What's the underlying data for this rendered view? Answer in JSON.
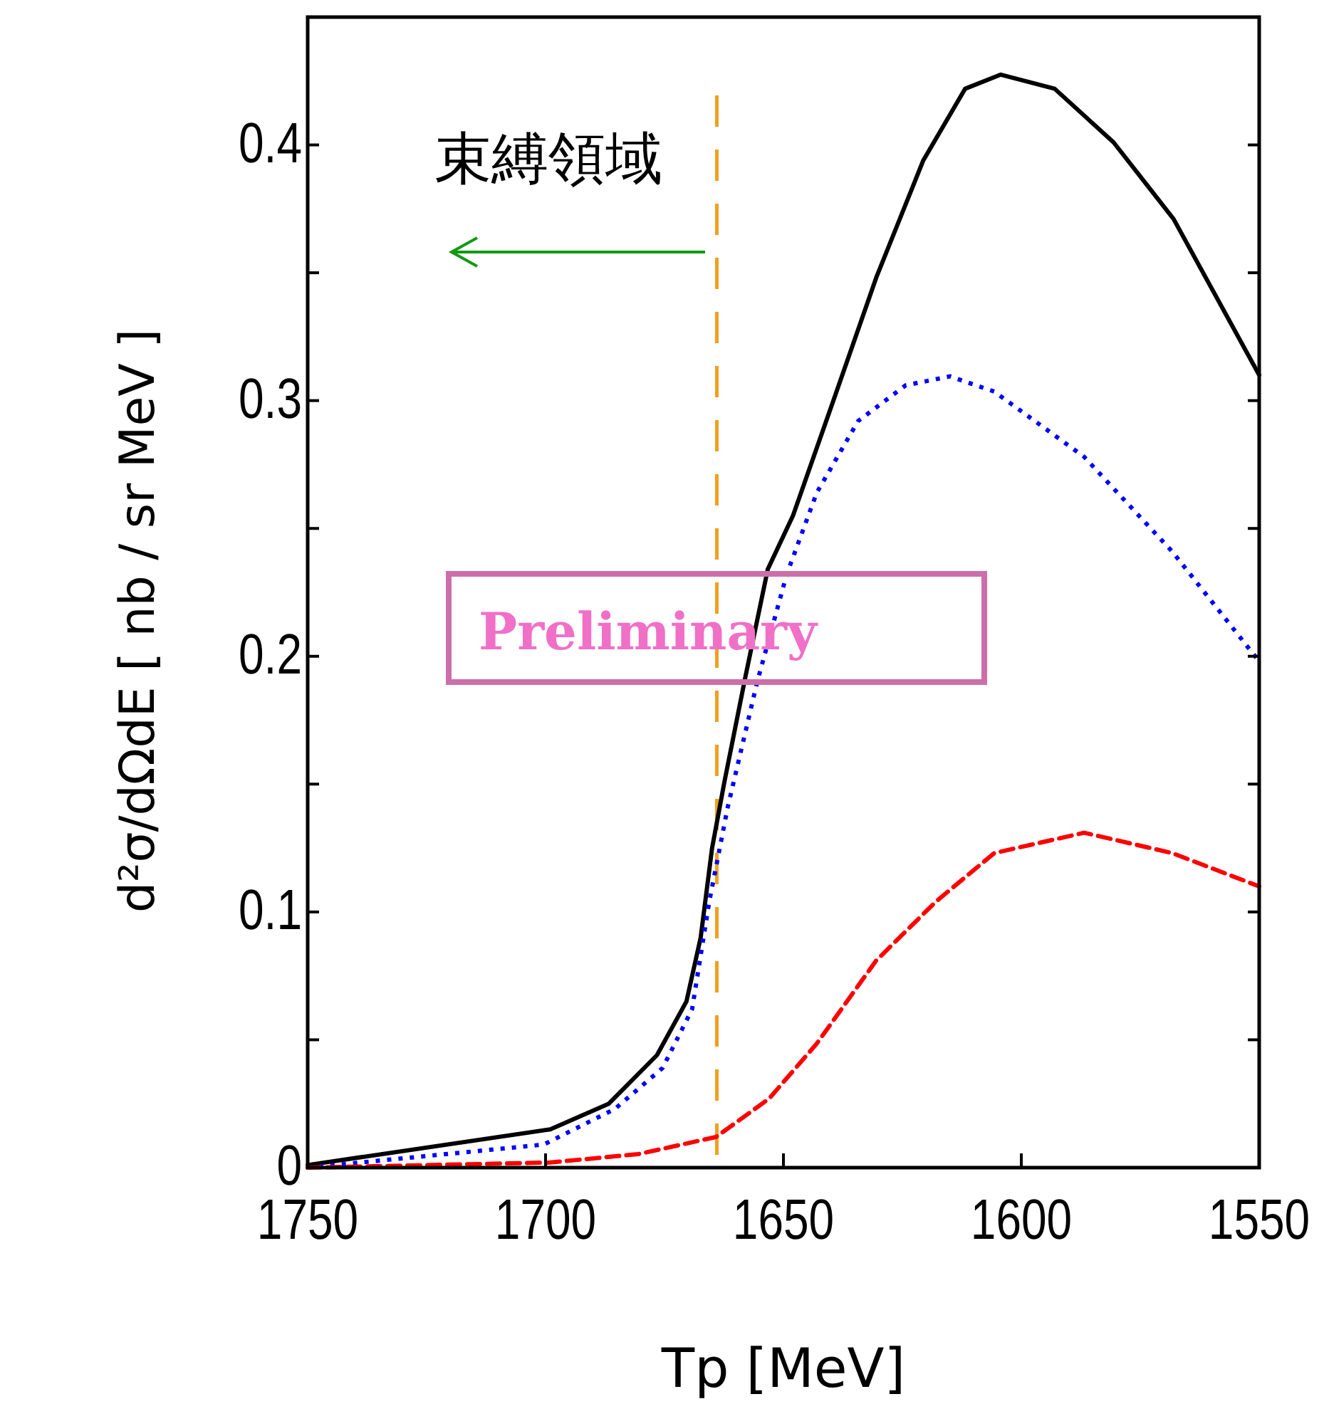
{
  "chart_data": {
    "type": "line",
    "xlabel": "Tp [MeV]",
    "ylabel": "d²σ/dΩdE [ nb / sr MeV ]",
    "xlim": [
      1750,
      1550
    ],
    "ylim": [
      0,
      0.45
    ],
    "xticks": [
      1750,
      1700,
      1650,
      1600,
      1550
    ],
    "yticks": [
      0,
      {
        "value": 0.05,
        "label": null
      },
      0.1,
      {
        "value": 0.15,
        "label": null
      },
      0.2,
      {
        "value": 0.25,
        "label": null
      },
      0.3,
      {
        "value": 0.35,
        "label": null
      },
      0.4
    ],
    "grid": false,
    "series": [
      {
        "color": "#000000",
        "line_style": "solid",
        "x": [
          1750,
          1699,
          1686.7,
          1676.6,
          1670.4,
          1667.4,
          1665,
          1662.4,
          1658,
          1653.3,
          1648,
          1639.3,
          1630.5,
          1620.6,
          1611.8,
          1604.3,
          1593,
          1580.6,
          1568,
          1550
        ],
        "values": [
          0.001,
          0.015,
          0.025,
          0.044,
          0.065,
          0.09,
          0.125,
          0.151,
          0.192,
          0.234,
          0.255,
          0.301,
          0.348,
          0.394,
          0.422,
          0.4275,
          0.422,
          0.401,
          0.371,
          0.31
        ]
      },
      {
        "color": "#0000ff",
        "line_style": "dotted",
        "x": [
          1750,
          1700.4,
          1685.4,
          1675.4,
          1669.2,
          1665.6,
          1661.7,
          1655.5,
          1649.3,
          1643,
          1634.3,
          1624.3,
          1615,
          1605.7,
          1586.8,
          1568.3,
          1550
        ],
        "values": [
          0,
          0.009,
          0.023,
          0.039,
          0.062,
          0.104,
          0.141,
          0.19,
          0.232,
          0.264,
          0.292,
          0.306,
          0.3095,
          0.3035,
          0.278,
          0.241,
          0.198
        ]
      },
      {
        "color": "#ff0000",
        "line_style": "dashed",
        "x": [
          1750,
          1699,
          1680.5,
          1664.2,
          1653,
          1643,
          1630.5,
          1618,
          1605.7,
          1586.8,
          1568.3,
          1550
        ],
        "values": [
          0,
          0.002,
          0.0053,
          0.012,
          0.027,
          0.0485,
          0.081,
          0.104,
          0.123,
          0.131,
          0.123,
          0.11
        ]
      }
    ],
    "ref_lines": [
      {
        "axis": "x",
        "value": 1664,
        "color": "#f0a020",
        "line_style": "dashed"
      }
    ],
    "annotations": [
      "束縛領域",
      "Preliminary"
    ]
  }
}
